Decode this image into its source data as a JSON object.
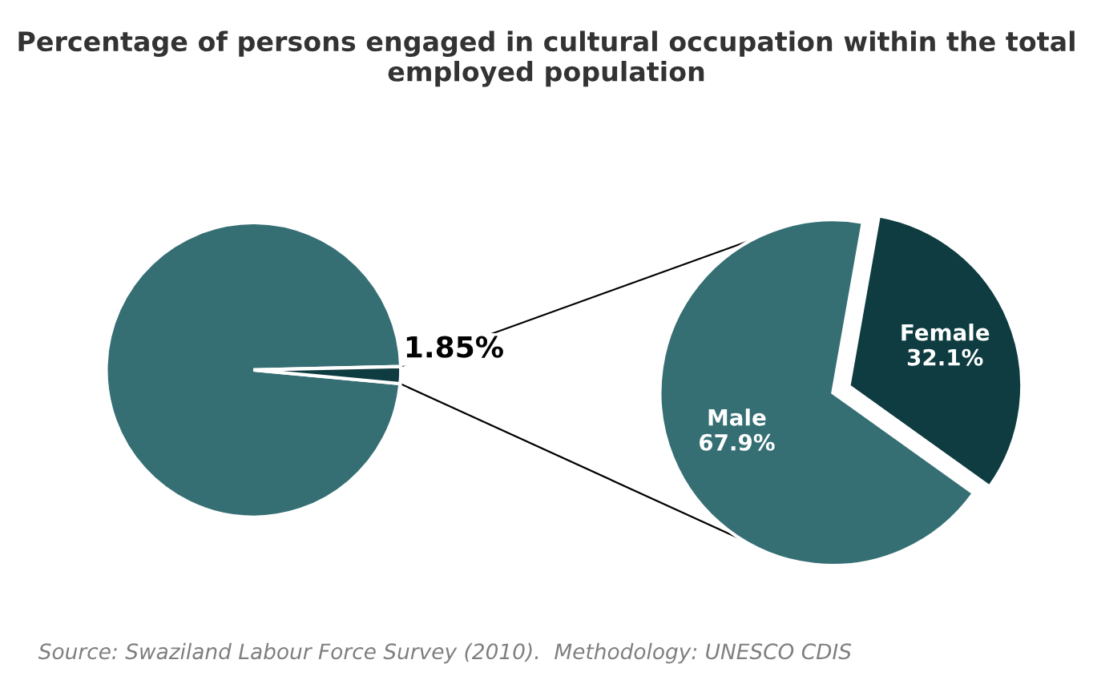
{
  "chart_data": [
    {
      "type": "pie",
      "title": "Percentage of persons engaged in cultural occupation within the total employed population",
      "categories": [
        null,
        null
      ],
      "values": [
        98.15,
        1.85
      ],
      "colors": [
        "#356f74",
        "#0e3c41"
      ],
      "value_labels": [
        null,
        "1.85%"
      ],
      "annotations": [
        "Source: Swaziland Labour Force Survey (2010).  Methodology: UNESCO CDIS"
      ]
    },
    {
      "type": "pie",
      "categories": [
        "Male",
        "Female"
      ],
      "values": [
        67.9,
        32.1
      ],
      "colors": [
        "#356f74",
        "#0e3c41"
      ],
      "value_labels": [
        "67.9%",
        "32.1%"
      ]
    }
  ]
}
